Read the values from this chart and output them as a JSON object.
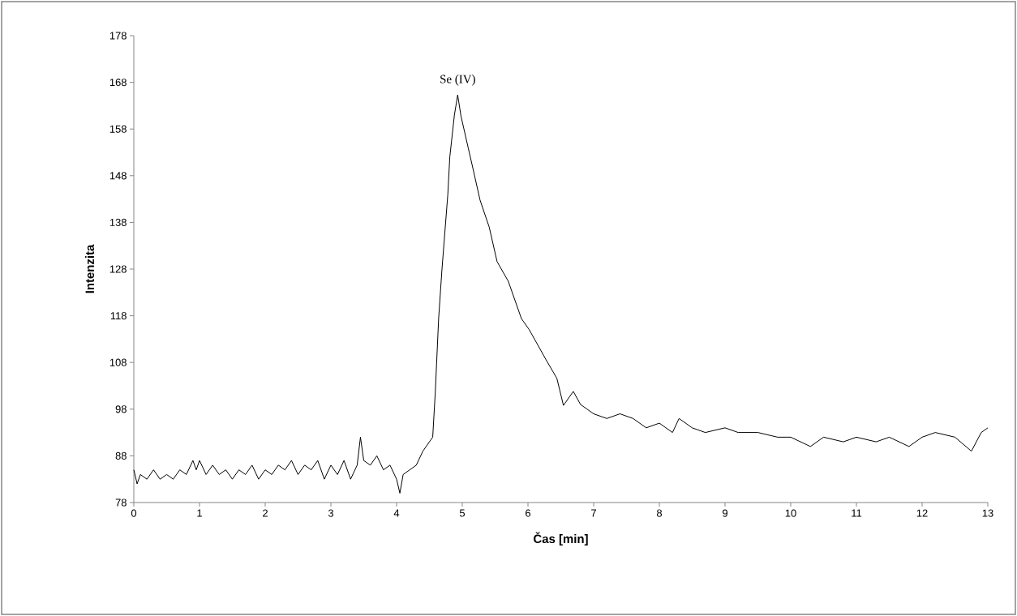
{
  "chart_data": {
    "type": "line",
    "xlabel": "Čas [min]",
    "ylabel": "Intenzita",
    "annotations": [
      {
        "text": "Se (IV)",
        "x": 4.93,
        "y": 165.3
      }
    ],
    "xlim": [
      0,
      13
    ],
    "xticks": [
      0,
      1,
      2,
      3,
      4,
      5,
      6,
      7,
      8,
      9,
      10,
      11,
      12,
      13
    ],
    "ylim": [
      78,
      178
    ],
    "yticks": [
      78,
      88,
      98,
      108,
      118,
      128,
      138,
      148,
      158,
      168,
      178
    ],
    "grid": false,
    "marker": "none",
    "line_style": "solid",
    "series": [
      {
        "color": "#000000",
        "x": [
          0,
          0.05,
          0.1,
          0.2,
          0.3,
          0.4,
          0.5,
          0.6,
          0.7,
          0.8,
          0.9,
          0.95,
          1.0,
          1.1,
          1.2,
          1.3,
          1.4,
          1.5,
          1.6,
          1.7,
          1.8,
          1.9,
          2.0,
          2.1,
          2.2,
          2.3,
          2.4,
          2.5,
          2.6,
          2.7,
          2.8,
          2.9,
          3.0,
          3.1,
          3.2,
          3.3,
          3.4,
          3.45,
          3.5,
          3.6,
          3.7,
          3.8,
          3.9,
          4.0,
          4.05,
          4.1,
          4.2,
          4.3,
          4.4,
          4.5,
          4.55,
          4.59,
          4.64,
          4.69,
          4.78,
          4.81,
          4.88,
          4.93,
          4.98,
          5.09,
          5.16,
          5.27,
          5.41,
          5.53,
          5.7,
          5.9,
          6.02,
          6.27,
          6.44,
          6.54,
          6.69,
          6.8,
          6.9,
          7.0,
          7.2,
          7.4,
          7.6,
          7.8,
          8.0,
          8.2,
          8.3,
          8.5,
          8.7,
          9.0,
          9.2,
          9.5,
          9.8,
          10.0,
          10.3,
          10.5,
          10.8,
          11.0,
          11.3,
          11.5,
          11.8,
          12.0,
          12.2,
          12.5,
          12.75,
          12.9,
          13.0
        ],
        "values": [
          85,
          82,
          84,
          83,
          85,
          83,
          84,
          83,
          85,
          84,
          87,
          85,
          87,
          84,
          86,
          84,
          85,
          83,
          85,
          84,
          86,
          83,
          85,
          84,
          86,
          85,
          87,
          84,
          86,
          85,
          87,
          83,
          86,
          84,
          87,
          83,
          86,
          92,
          87,
          86,
          88,
          85,
          86,
          83,
          80,
          84,
          85,
          86,
          89,
          91,
          92,
          101.8,
          117.4,
          127.8,
          144,
          152,
          161,
          165.3,
          160.8,
          154,
          149.7,
          142.8,
          137,
          129.6,
          125.4,
          117.4,
          115,
          108.7,
          104.6,
          98.8,
          101.8,
          99,
          98,
          97,
          96,
          97,
          96,
          94,
          95,
          93,
          96,
          94,
          93,
          94,
          93,
          93,
          92,
          92,
          90,
          92,
          91,
          92,
          91,
          92,
          90,
          92,
          93,
          92,
          89,
          93,
          94
        ]
      }
    ]
  }
}
